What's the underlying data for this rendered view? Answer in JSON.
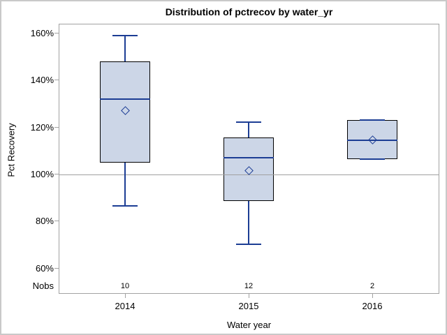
{
  "chart_data": {
    "type": "box",
    "title": "Distribution of pctrecov by water_yr",
    "xlabel": "Water year",
    "ylabel": "Pct Recovery",
    "nobs_row_label": "Nobs",
    "legend": "none",
    "grid": "off",
    "y_axis": {
      "unit": "%",
      "tick_labels": [
        "160%",
        "140%",
        "120%",
        "100%",
        "80%",
        "60%"
      ],
      "tick_values": [
        160,
        140,
        120,
        100,
        80,
        60
      ],
      "ylim": [
        49,
        164
      ]
    },
    "x_axis": {
      "categories": [
        "2014",
        "2015",
        "2016"
      ]
    },
    "reference_line": 100,
    "series": [
      {
        "category": "2014",
        "nobs": "10",
        "min": 86.5,
        "q1": 105,
        "median": 132,
        "mean": 127,
        "q3": 148,
        "max": 159
      },
      {
        "category": "2015",
        "nobs": "12",
        "min": 70,
        "q1": 88.5,
        "median": 107,
        "mean": 101.5,
        "q3": 115.5,
        "max": 122
      },
      {
        "category": "2016",
        "nobs": "2",
        "min": 106.5,
        "q1": 106.5,
        "median": 114.5,
        "mean": 114.5,
        "q3": 123,
        "max": 123
      }
    ],
    "colors": {
      "box_fill": "#ccd6e7",
      "box_border": "#000000",
      "whisker": "#1c3d94",
      "median": "#1c3d94",
      "mean_marker": "#1c3d94",
      "reference_line": "#a0a0a0",
      "axis_frame": "#a2a2a2",
      "text": "#000000",
      "page_border": "#c9c9c9"
    }
  }
}
